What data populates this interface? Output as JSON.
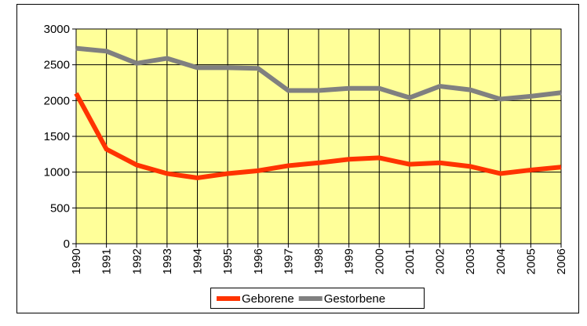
{
  "chart_data": {
    "type": "line",
    "categories": [
      "1990",
      "1991",
      "1992",
      "1993",
      "1994",
      "1995",
      "1996",
      "1997",
      "1998",
      "1999",
      "2000",
      "2001",
      "2002",
      "2003",
      "2004",
      "2005",
      "2006"
    ],
    "series": [
      {
        "name": "Geborene",
        "color": "#ff3300",
        "values": [
          2100,
          1320,
          1100,
          980,
          920,
          980,
          1020,
          1090,
          1130,
          1180,
          1200,
          1110,
          1130,
          1080,
          980,
          1030,
          1070
        ]
      },
      {
        "name": "Gestorbene",
        "color": "#808080",
        "values": [
          2730,
          2690,
          2520,
          2590,
          2460,
          2460,
          2450,
          2140,
          2140,
          2170,
          2170,
          2040,
          2200,
          2150,
          2020,
          2060,
          2110
        ]
      }
    ],
    "ylim": [
      0,
      3000
    ],
    "yticks": [
      0,
      500,
      1000,
      1500,
      2000,
      2500,
      3000
    ],
    "grid": true,
    "legend": "bottom"
  }
}
